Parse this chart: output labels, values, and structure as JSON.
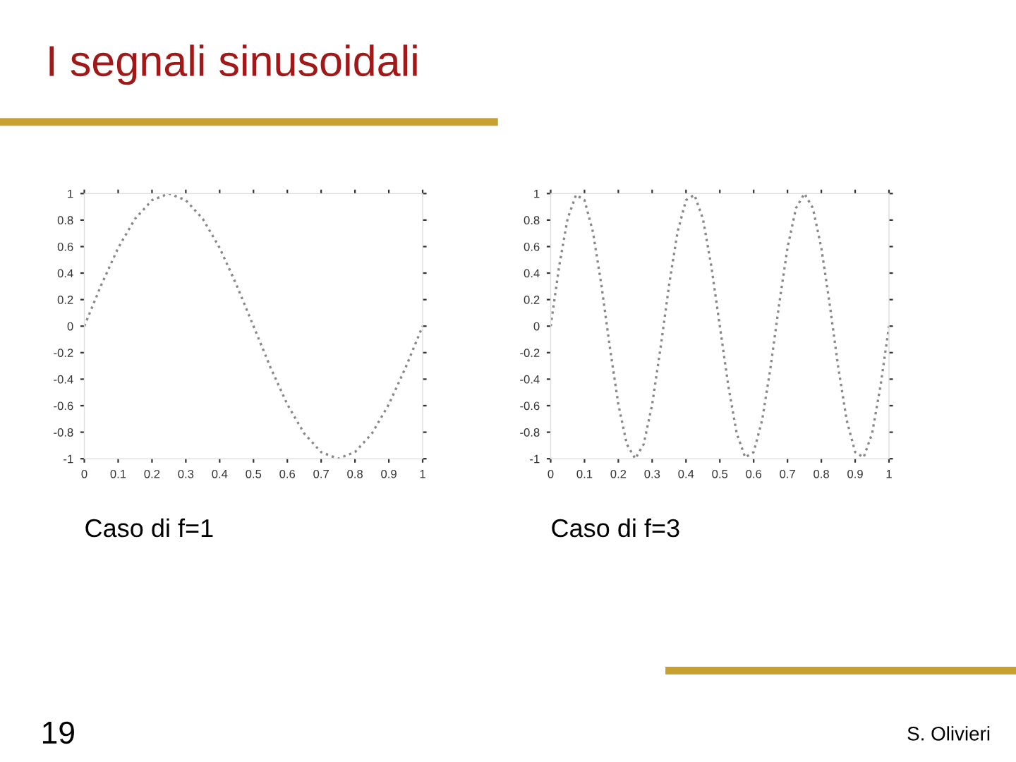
{
  "chart_data": [
    {
      "type": "line",
      "title": "I segnali sinusoidali",
      "xlabel": "Caso di f=1",
      "annotations": [
        "19"
      ],
      "x": [
        0,
        0.05,
        0.1,
        0.15,
        0.2,
        0.25,
        0.3,
        0.35,
        0.4,
        0.45,
        0.5,
        0.55,
        0.6,
        0.65,
        0.7,
        0.75,
        0.8,
        0.85,
        0.9,
        0.95,
        1
      ],
      "series": [
        {
          "color": "#888888",
          "values": [
            0,
            0.31,
            0.59,
            0.81,
            0.95,
            1,
            0.95,
            0.81,
            0.59,
            0.31,
            0,
            -0.31,
            -0.59,
            -0.81,
            -0.95,
            -1,
            -0.95,
            -0.81,
            -0.59,
            -0.31,
            0
          ]
        }
      ],
      "xlim": [
        0,
        1
      ],
      "ylim": [
        -1,
        1
      ],
      "xticks": [
        0,
        0.1,
        0.2,
        0.3,
        0.4,
        0.5,
        0.6,
        0.7,
        0.8,
        0.9,
        1
      ],
      "yticks": [
        -1,
        -0.8,
        -0.6,
        -0.4,
        -0.2,
        0,
        0.2,
        0.4,
        0.6,
        0.8,
        1
      ],
      "grid": false,
      "legend": false,
      "line_style": "dotted"
    },
    {
      "type": "line",
      "xlabel": "Caso di f=3",
      "annotations": [
        "S. Olivieri"
      ],
      "x": [
        0,
        0.025,
        0.05,
        0.075,
        0.1,
        0.125,
        0.15,
        0.175,
        0.2,
        0.225,
        0.25,
        0.275,
        0.3,
        0.325,
        0.35,
        0.375,
        0.4,
        0.425,
        0.45,
        0.475,
        0.5,
        0.525,
        0.55,
        0.575,
        0.6,
        0.625,
        0.65,
        0.675,
        0.7,
        0.725,
        0.75,
        0.775,
        0.8,
        0.825,
        0.85,
        0.875,
        0.9,
        0.925,
        0.95,
        0.975,
        1
      ],
      "series": [
        {
          "color": "#888888",
          "values": [
            0,
            0.45,
            0.81,
            0.99,
            0.95,
            0.71,
            0.31,
            -0.16,
            -0.59,
            -0.89,
            -1,
            -0.89,
            -0.59,
            -0.16,
            0.31,
            0.71,
            0.95,
            0.99,
            0.81,
            0.45,
            0,
            -0.45,
            -0.81,
            -0.99,
            -0.95,
            -0.71,
            -0.31,
            0.16,
            0.59,
            0.89,
            1,
            0.89,
            0.59,
            0.16,
            -0.31,
            -0.71,
            -0.95,
            -0.99,
            -0.81,
            -0.45,
            0
          ]
        }
      ],
      "xlim": [
        0,
        1
      ],
      "ylim": [
        -1,
        1
      ],
      "xticks": [
        0,
        0.1,
        0.2,
        0.3,
        0.4,
        0.5,
        0.6,
        0.7,
        0.8,
        0.9,
        1
      ],
      "yticks": [
        -1,
        -0.8,
        -0.6,
        -0.4,
        -0.2,
        0,
        0.2,
        0.4,
        0.6,
        0.8,
        1
      ],
      "grid": false,
      "legend": false,
      "line_style": "dotted"
    }
  ]
}
